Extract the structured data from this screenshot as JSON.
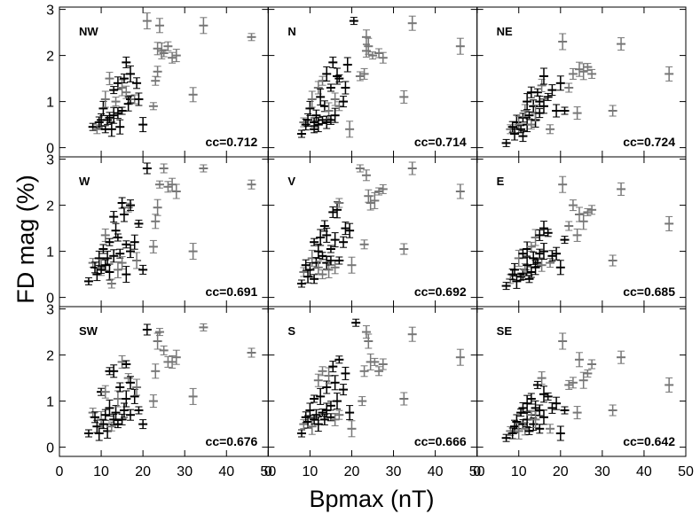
{
  "figure": {
    "xlabel": "Bpmax (nT)",
    "ylabel": "FD mag (%)",
    "x_ticks": [
      0,
      10,
      20,
      30,
      40,
      50
    ],
    "y_ticks": [
      0,
      1,
      2,
      3
    ],
    "colors": {
      "axes": "#000000",
      "marker": "#000000",
      "faded_marker": "#777777"
    }
  },
  "chart_data": [
    {
      "type": "scatter",
      "panel": "NW",
      "cc": "cc=0.712",
      "xlim": [
        0,
        50
      ],
      "ylim": [
        -0.2,
        3.05
      ],
      "marker": "cross-with-errorbars",
      "x": [
        8,
        9,
        9.5,
        10,
        10.5,
        11,
        11,
        11.5,
        12,
        12,
        12.5,
        13,
        13,
        13.5,
        14,
        14,
        14.5,
        15,
        15,
        15.5,
        16,
        16,
        16.5,
        17,
        17,
        18,
        18.5,
        19,
        20,
        21,
        22.5,
        23,
        23.5,
        23.5,
        24,
        24.5,
        25,
        26,
        27,
        28,
        32,
        34.5,
        46
      ],
      "y": [
        0.45,
        0.4,
        0.55,
        0.6,
        0.85,
        1.05,
        0.4,
        0.6,
        0.65,
        1.5,
        0.4,
        0.7,
        1.25,
        1.0,
        0.75,
        1.4,
        0.45,
        1.3,
        0.8,
        1.5,
        1.85,
        1.2,
        0.95,
        1.6,
        1.05,
        1.05,
        1.4,
        1.05,
        0.5,
        2.75,
        0.9,
        1.45,
        1.65,
        2.15,
        2.65,
        2.1,
        2.05,
        2.2,
        1.95,
        2.0,
        1.15,
        2.65,
        2.4
      ]
    },
    {
      "type": "scatter",
      "panel": "N",
      "cc": "cc=0.714",
      "xlim": [
        0,
        50
      ],
      "ylim": [
        -0.2,
        3.05
      ],
      "marker": "cross-with-errorbars",
      "x": [
        8,
        8.5,
        9,
        9.5,
        10,
        10.5,
        11,
        11,
        11.5,
        12,
        12,
        12.5,
        13,
        13,
        13.5,
        14,
        14,
        14.5,
        15,
        15,
        15.5,
        16,
        16,
        16.5,
        17,
        17,
        18,
        18.5,
        19,
        19.5,
        20.5,
        22,
        23,
        23.5,
        23.5,
        24,
        25,
        26.5,
        27.5,
        32.5,
        34.5,
        46
      ],
      "y": [
        0.3,
        0.55,
        0.5,
        0.6,
        0.85,
        1.05,
        0.4,
        0.55,
        0.7,
        1.3,
        0.5,
        1.1,
        0.6,
        1.45,
        0.9,
        0.55,
        1.6,
        0.8,
        1.3,
        0.6,
        1.85,
        1.05,
        0.7,
        1.55,
        1.5,
        0.9,
        1.0,
        1.3,
        1.8,
        0.4,
        2.75,
        1.55,
        1.6,
        2.1,
        2.4,
        2.2,
        2.0,
        2.05,
        1.95,
        1.1,
        2.7,
        2.2
      ]
    },
    {
      "type": "scatter",
      "panel": "NE",
      "cc": "cc=0.724",
      "xlim": [
        0,
        50
      ],
      "ylim": [
        -0.2,
        3.05
      ],
      "marker": "cross-with-errorbars",
      "x": [
        7,
        8,
        8.5,
        9,
        9.5,
        10,
        10.5,
        11,
        11,
        11.5,
        12,
        12,
        12.5,
        13,
        13,
        13.5,
        14,
        14,
        14.5,
        15,
        15,
        15.5,
        16,
        16,
        17,
        17.5,
        18,
        19,
        20,
        20.5,
        21,
        22,
        23,
        24,
        24.5,
        25.5,
        26.5,
        27.5,
        32.5,
        34.5,
        46
      ],
      "y": [
        0.1,
        0.4,
        0.45,
        0.3,
        0.55,
        0.5,
        0.4,
        0.65,
        0.25,
        0.8,
        0.5,
        1.0,
        0.7,
        0.5,
        1.2,
        0.9,
        0.6,
        0.75,
        1.2,
        0.75,
        1.0,
        1.35,
        0.9,
        1.55,
        1.1,
        0.4,
        1.25,
        0.8,
        1.4,
        2.3,
        0.8,
        1.3,
        1.6,
        0.75,
        1.7,
        1.65,
        1.75,
        1.6,
        0.8,
        2.25,
        1.6
      ]
    },
    {
      "type": "scatter",
      "panel": "W",
      "cc": "cc=0.691",
      "xlim": [
        0,
        50
      ],
      "ylim": [
        -0.2,
        3.05
      ],
      "marker": "cross-with-errorbars",
      "x": [
        7,
        8,
        8.5,
        9,
        9.5,
        10,
        10,
        10.5,
        11,
        11,
        11.5,
        12,
        12,
        12.5,
        13,
        13,
        13.5,
        14,
        14,
        14.5,
        15,
        15,
        15.5,
        16,
        16,
        16.5,
        17,
        17,
        18,
        18.5,
        19,
        20,
        21,
        22.5,
        23,
        23.5,
        24,
        25,
        26,
        27,
        28,
        32,
        34.5,
        46
      ],
      "y": [
        0.35,
        0.75,
        0.65,
        0.5,
        0.85,
        0.65,
        0.6,
        1.05,
        0.7,
        1.35,
        0.85,
        0.55,
        1.2,
        0.3,
        1.75,
        0.9,
        1.45,
        0.6,
        1.3,
        0.95,
        2.05,
        0.75,
        1.8,
        0.5,
        1.15,
        1.95,
        2.0,
        1.0,
        1.2,
        0.8,
        1.6,
        0.6,
        2.8,
        1.1,
        1.65,
        1.95,
        2.45,
        2.8,
        2.4,
        2.45,
        2.3,
        1.0,
        2.8,
        2.45
      ]
    },
    {
      "type": "scatter",
      "panel": "V",
      "cc": "cc=0.692",
      "xlim": [
        0,
        50
      ],
      "ylim": [
        -0.2,
        3.05
      ],
      "marker": "cross-with-errorbars",
      "x": [
        8,
        8.5,
        9,
        9.5,
        10,
        10.5,
        11,
        11,
        11.5,
        12,
        12,
        12.5,
        13,
        13,
        13.5,
        14,
        14,
        14.5,
        15,
        15,
        15.5,
        16,
        16,
        16.5,
        17,
        17,
        18,
        18.5,
        19.5,
        20,
        22,
        23,
        23.5,
        24,
        24.5,
        25.5,
        26.5,
        27.5,
        32.5,
        34.5,
        46
      ],
      "y": [
        0.3,
        0.55,
        0.7,
        0.45,
        0.6,
        0.85,
        1.2,
        0.4,
        0.75,
        0.65,
        1.0,
        1.3,
        0.9,
        0.5,
        1.55,
        0.75,
        1.35,
        0.6,
        1.05,
        0.8,
        1.85,
        0.65,
        1.25,
        1.9,
        0.8,
        2.05,
        1.2,
        1.5,
        1.45,
        0.7,
        2.8,
        1.15,
        2.65,
        2.2,
        2.05,
        2.1,
        2.3,
        2.35,
        1.05,
        2.8,
        2.3
      ]
    },
    {
      "type": "scatter",
      "panel": "E",
      "cc": "cc=0.685",
      "xlim": [
        0,
        50
      ],
      "ylim": [
        -0.2,
        3.05
      ],
      "marker": "cross-with-errorbars",
      "x": [
        7,
        8,
        8.5,
        9,
        9.5,
        10,
        10.5,
        11,
        11,
        11.5,
        12,
        12,
        12.5,
        13,
        13,
        13.5,
        14,
        14,
        14.5,
        15,
        15,
        15.5,
        16,
        16,
        17,
        17.5,
        18,
        19,
        20,
        20.5,
        21,
        22,
        23,
        24,
        24.5,
        25.5,
        26.5,
        27.5,
        32.5,
        34.5,
        46
      ],
      "y": [
        0.25,
        0.4,
        0.5,
        0.6,
        0.35,
        0.85,
        0.45,
        0.95,
        0.5,
        0.6,
        1.05,
        0.7,
        0.4,
        1.1,
        0.55,
        0.85,
        0.65,
        1.3,
        0.75,
        0.95,
        1.35,
        0.7,
        1.5,
        1.0,
        1.4,
        0.75,
        0.9,
        0.95,
        0.65,
        2.45,
        1.25,
        1.55,
        2.0,
        1.35,
        1.8,
        1.65,
        1.85,
        1.9,
        0.8,
        2.35,
        1.6
      ]
    },
    {
      "type": "scatter",
      "panel": "SW",
      "cc": "cc=0.676",
      "xlim": [
        0,
        50
      ],
      "ylim": [
        -0.2,
        3.05
      ],
      "marker": "cross-with-errorbars",
      "x": [
        7,
        8,
        8.5,
        9,
        9.5,
        10,
        10,
        10.5,
        11,
        11,
        11.5,
        12,
        12,
        12.5,
        13,
        13,
        13.5,
        14,
        14,
        14.5,
        15,
        15,
        15.5,
        16,
        16,
        16.5,
        17,
        17,
        18,
        18.5,
        19,
        20,
        21,
        22.5,
        23,
        23.5,
        24,
        25,
        26,
        27,
        28,
        32,
        34.5,
        46
      ],
      "y": [
        0.3,
        0.75,
        0.65,
        0.45,
        0.3,
        0.6,
        1.2,
        0.5,
        0.7,
        1.2,
        0.35,
        0.85,
        1.65,
        0.45,
        0.6,
        1.65,
        0.75,
        1.05,
        0.5,
        1.3,
        0.6,
        1.85,
        0.8,
        1.05,
        1.8,
        1.5,
        0.7,
        1.4,
        1.1,
        1.3,
        0.8,
        0.5,
        2.55,
        1.0,
        1.65,
        2.3,
        2.5,
        2.1,
        1.85,
        1.85,
        1.95,
        1.1,
        2.6,
        2.05
      ]
    },
    {
      "type": "scatter",
      "panel": "S",
      "cc": "cc=0.666",
      "xlim": [
        0,
        50
      ],
      "ylim": [
        -0.2,
        3.05
      ],
      "marker": "cross-with-errorbars",
      "x": [
        8,
        8.5,
        9,
        9.5,
        10,
        10.5,
        11,
        11,
        11.5,
        12,
        12,
        12.5,
        13,
        13,
        13.5,
        14,
        14,
        14.5,
        15,
        15,
        15.5,
        16,
        16,
        16.5,
        17,
        17,
        18,
        18.5,
        19.5,
        20,
        21,
        22.5,
        23,
        23.5,
        24,
        24.5,
        25.5,
        26.5,
        27.5,
        32.5,
        34.5,
        46
      ],
      "y": [
        0.3,
        0.5,
        0.65,
        0.55,
        0.8,
        0.45,
        1.05,
        0.6,
        0.7,
        1.45,
        0.5,
        1.1,
        0.75,
        1.65,
        0.6,
        1.3,
        0.8,
        1.55,
        0.65,
        0.9,
        1.75,
        0.6,
        1.4,
        1.0,
        1.9,
        0.7,
        1.25,
        1.6,
        0.75,
        0.4,
        2.7,
        1.0,
        1.65,
        2.5,
        2.3,
        1.85,
        1.85,
        1.65,
        1.8,
        1.05,
        2.45,
        1.95
      ]
    },
    {
      "type": "scatter",
      "panel": "SE",
      "cc": "cc=0.642",
      "xlim": [
        0,
        50
      ],
      "ylim": [
        -0.2,
        3.05
      ],
      "marker": "cross-with-errorbars",
      "x": [
        7,
        8,
        8.5,
        9,
        9.5,
        10,
        10.5,
        11,
        11,
        11.5,
        12,
        12,
        12.5,
        13,
        13,
        13.5,
        14,
        14,
        14.5,
        15,
        15,
        15.5,
        16,
        16,
        17,
        17.5,
        18,
        19,
        20,
        20.5,
        21,
        22,
        23,
        24,
        24.5,
        25.5,
        26.5,
        27.5,
        32.5,
        34.5,
        46
      ],
      "y": [
        0.2,
        0.35,
        0.3,
        0.45,
        0.55,
        0.35,
        0.75,
        0.5,
        0.85,
        0.4,
        0.6,
        0.95,
        0.35,
        0.7,
        1.05,
        0.5,
        0.85,
        0.6,
        1.35,
        0.4,
        0.8,
        1.5,
        0.65,
        1.15,
        1.1,
        0.4,
        0.85,
        0.95,
        0.3,
        2.3,
        0.8,
        1.35,
        1.4,
        0.75,
        1.9,
        1.45,
        1.6,
        1.8,
        0.8,
        1.95,
        1.35
      ]
    }
  ]
}
